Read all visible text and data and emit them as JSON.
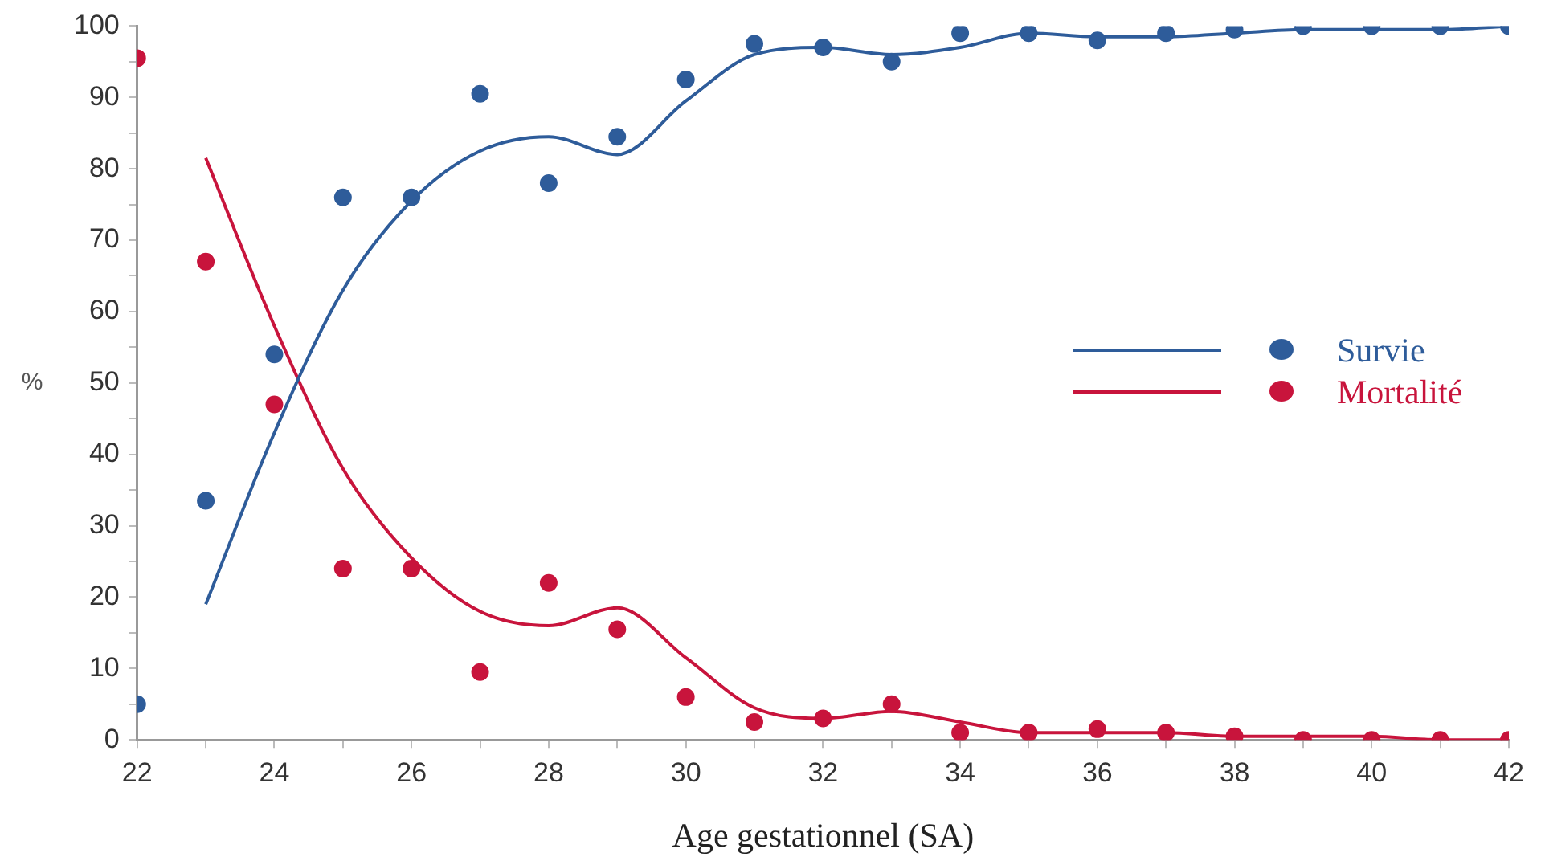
{
  "chart_data": {
    "type": "scatter",
    "xlabel": "Age gestationnel (SA)",
    "ylabel": "%",
    "xlim": [
      22,
      42
    ],
    "ylim": [
      0,
      100
    ],
    "xticks": [
      22,
      {
        "value": 23,
        "label": null
      },
      24,
      {
        "value": 25,
        "label": null
      },
      26,
      {
        "value": 27,
        "label": null
      },
      28,
      {
        "value": 29,
        "label": null
      },
      30,
      {
        "value": 31,
        "label": null
      },
      32,
      {
        "value": 33,
        "label": null
      },
      34,
      {
        "value": 35,
        "label": null
      },
      36,
      {
        "value": 37,
        "label": null
      },
      38,
      {
        "value": 39,
        "label": null
      },
      40,
      {
        "value": 41,
        "label": null
      },
      42
    ],
    "yticks": [
      0,
      {
        "value": 5,
        "label": null
      },
      10,
      {
        "value": 15,
        "label": null
      },
      20,
      {
        "value": 25,
        "label": null
      },
      30,
      {
        "value": 35,
        "label": null
      },
      40,
      {
        "value": 45,
        "label": null
      },
      50,
      {
        "value": 55,
        "label": null
      },
      60,
      {
        "value": 65,
        "label": null
      },
      70,
      {
        "value": 75,
        "label": null
      },
      80,
      {
        "value": 85,
        "label": null
      },
      90,
      {
        "value": 95,
        "label": null
      },
      100
    ],
    "grid": false,
    "legend": "right",
    "marker": "circle",
    "line_style": "solid",
    "series": [
      {
        "name": "Survie",
        "color": "#2e5c9a",
        "x": [
          22,
          23,
          24,
          25,
          26,
          27,
          28,
          29,
          30,
          31,
          32,
          33,
          34,
          35,
          36,
          37,
          38,
          39,
          40,
          41,
          42
        ],
        "values": [
          5,
          33.5,
          54,
          76,
          76,
          90.5,
          78,
          84.5,
          92.5,
          97.5,
          97,
          95,
          99,
          99,
          98,
          99,
          99.5,
          100,
          100,
          100,
          100
        ]
      },
      {
        "name": "Mortalité",
        "color": "#c8143c",
        "x": [
          22,
          23,
          24,
          25,
          26,
          27,
          28,
          29,
          30,
          31,
          32,
          33,
          34,
          35,
          36,
          37,
          38,
          39,
          40,
          41,
          42
        ],
        "values": [
          95.5,
          67,
          47,
          24,
          24,
          9.5,
          22,
          15.5,
          6,
          2.5,
          3,
          5,
          1,
          1,
          1.5,
          1,
          0.5,
          0,
          0,
          0,
          0
        ]
      },
      {
        "type": "line",
        "marker": "none",
        "color": "#2e5c9a",
        "x": [
          23,
          24,
          25,
          26,
          27,
          28,
          29,
          30,
          31,
          32,
          33,
          34,
          35,
          36,
          37,
          38,
          39,
          40,
          41,
          42
        ],
        "values": [
          19,
          43,
          63,
          75.5,
          82.5,
          84.5,
          82,
          89.5,
          96,
          97,
          96,
          97,
          99,
          98.5,
          98.5,
          99,
          99.5,
          99.5,
          99.5,
          100
        ]
      },
      {
        "type": "line",
        "marker": "none",
        "color": "#c8143c",
        "x": [
          23,
          24,
          25,
          26,
          27,
          28,
          29,
          30,
          31,
          32,
          33,
          34,
          35,
          36,
          37,
          38,
          39,
          40,
          41,
          42
        ],
        "values": [
          81.5,
          58,
          38,
          25.5,
          18,
          16,
          18.5,
          11.5,
          4.5,
          3,
          4,
          2.5,
          1,
          1,
          1,
          0.5,
          0.5,
          0.5,
          0,
          0
        ]
      }
    ]
  }
}
